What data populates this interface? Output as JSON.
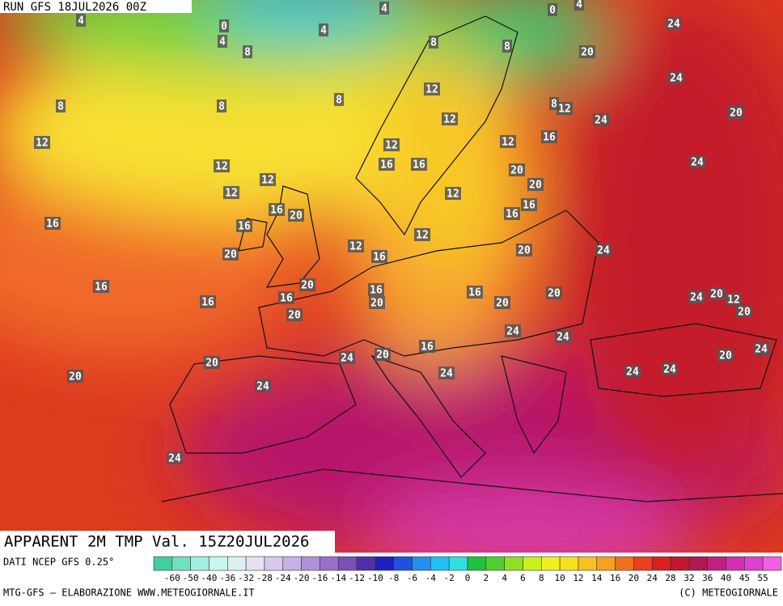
{
  "header": {
    "run": "RUN GFS 18JUL2026 00Z",
    "title": "APPARENT 2M TMP Val. 15Z20JUL2026"
  },
  "footer": {
    "source": "DATI NCEP GFS 0.25°",
    "credit": "MTG-GFS — ELABORAZIONE WWW.METEOGIORNALE.IT",
    "copyright": "(C) METEOGIORNALE"
  },
  "legend": {
    "ticks": [
      -60,
      -50,
      -40,
      -36,
      -32,
      -28,
      -24,
      -20,
      -16,
      -14,
      -12,
      -10,
      -8,
      -6,
      -4,
      -2,
      0,
      2,
      4,
      6,
      8,
      10,
      12,
      14,
      16,
      20,
      24,
      28,
      32,
      36,
      40,
      45,
      55
    ],
    "colors": [
      "#40d0a0",
      "#70e0c0",
      "#a0f0e0",
      "#c8f8f0",
      "#e0f0f0",
      "#e8e0f0",
      "#d8c8ec",
      "#c8b0e4",
      "#b090d8",
      "#9870c8",
      "#7850b8",
      "#5030a8",
      "#2020c0",
      "#2050e0",
      "#2090f0",
      "#20c0f8",
      "#30e0e0",
      "#20c040",
      "#50d030",
      "#90e020",
      "#c8f020",
      "#f0f020",
      "#f8e020",
      "#f8c020",
      "#f8a020",
      "#f07020",
      "#e84020",
      "#d82020",
      "#c01830",
      "#b01850",
      "#c02080",
      "#d030b0",
      "#e040d0",
      "#f060e0"
    ]
  },
  "map": {
    "labels": [
      4,
      4,
      0,
      4,
      4,
      8,
      0,
      4,
      24,
      8,
      8,
      20,
      24,
      8,
      8,
      8,
      12,
      8,
      12,
      20,
      24,
      12,
      12,
      12,
      12,
      16,
      24,
      12,
      16,
      16,
      20,
      12,
      12,
      20,
      12,
      16,
      20,
      16,
      16,
      16,
      16,
      12,
      20,
      12,
      16,
      20,
      24,
      16,
      20,
      16,
      16,
      20,
      16,
      16,
      20,
      20,
      24,
      20,
      12,
      20,
      20,
      24,
      24,
      20,
      16,
      24,
      20,
      24,
      20,
      24,
      24,
      24,
      20,
      24,
      24
    ]
  }
}
